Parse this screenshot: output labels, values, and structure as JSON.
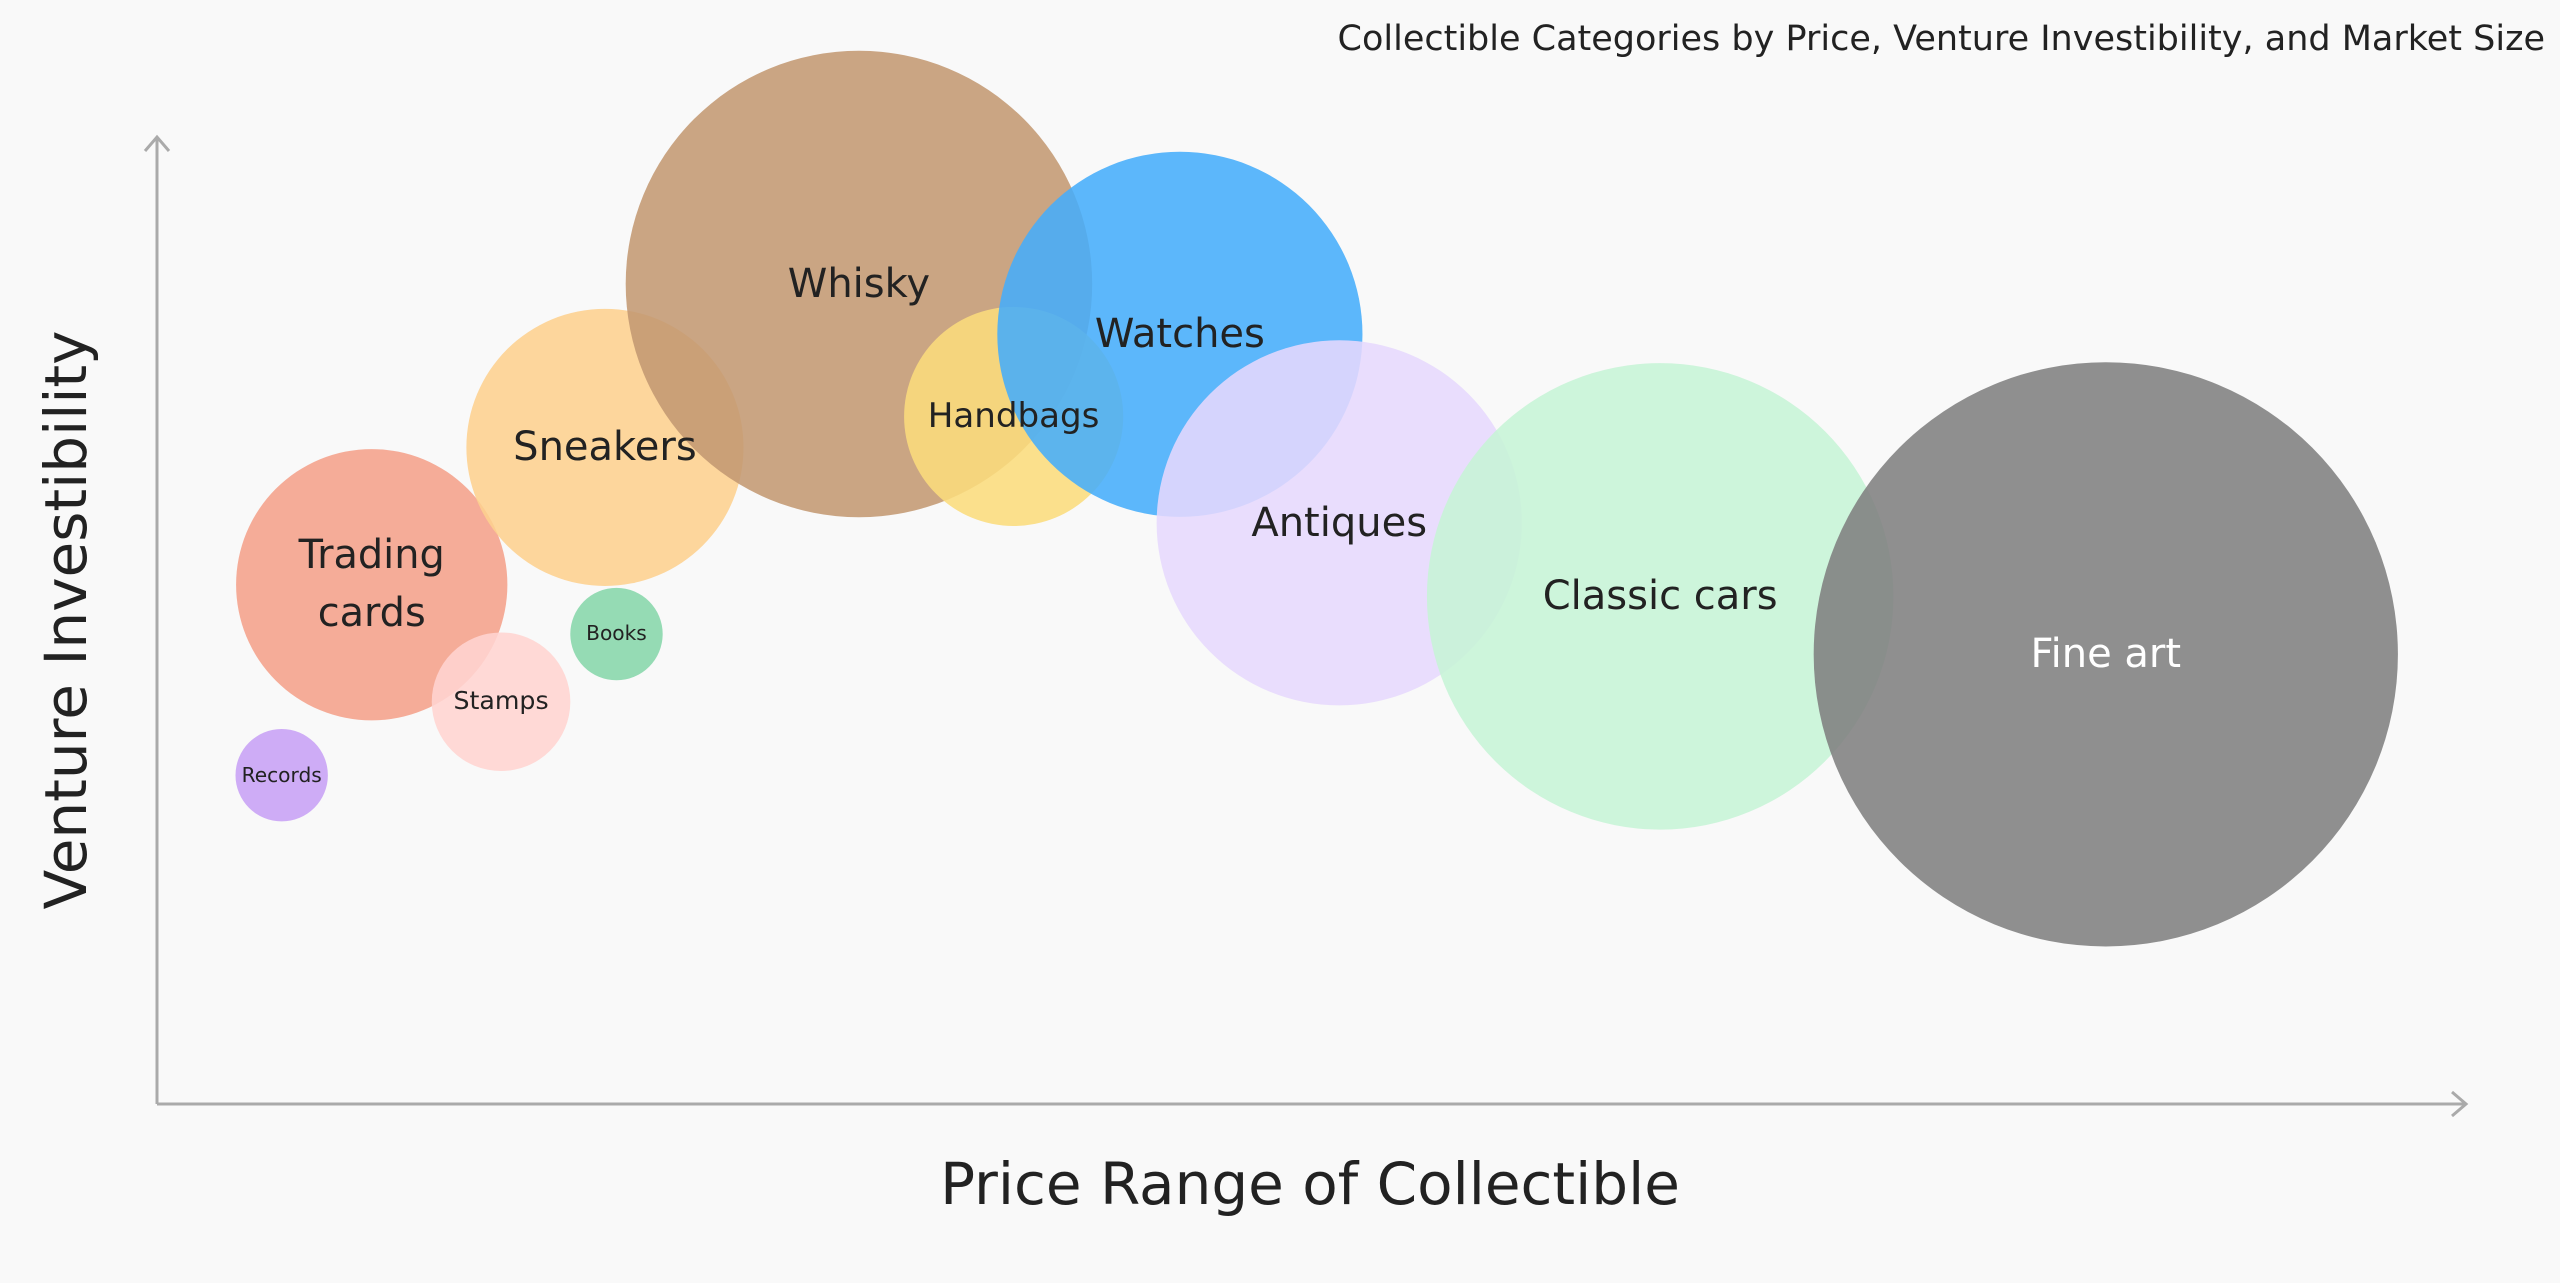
{
  "chart_data": {
    "type": "bubble",
    "title": "Collectible Categories by Price, Venture Investibility, and Market Size",
    "x_label": "Price Range of Collectible",
    "y_label": "Venture Investibility",
    "xlim": [
      0,
      100
    ],
    "ylim": [
      0,
      100
    ],
    "points": [
      {
        "name": "Trading cards",
        "color": "#f4a08a",
        "x": 9.3,
        "y": 53.7,
        "size": 69
      },
      {
        "name": "Stamps",
        "color": "#ffd4d0",
        "x": 14.9,
        "y": 41.6,
        "size": 18
      },
      {
        "name": "Books",
        "color": "#86d6aa",
        "x": 19.9,
        "y": 48.6,
        "size": 8
      },
      {
        "name": "Records",
        "color": "#c7a0f5",
        "x": 5.4,
        "y": 34.0,
        "size": 8
      },
      {
        "name": "Sneakers",
        "color": "#fdd08e",
        "x": 19.4,
        "y": 67.9,
        "size": 72
      },
      {
        "name": "Whisky",
        "color": "#c39872",
        "x": 30.4,
        "y": 84.8,
        "size": 204
      },
      {
        "name": "Handbags",
        "color": "#fbdc7c",
        "x": 37.1,
        "y": 71.1,
        "size": 45
      },
      {
        "name": "Watches",
        "color": "#45adfb",
        "x": 44.3,
        "y": 79.6,
        "size": 125
      },
      {
        "name": "Antiques",
        "color": "#e6d8fd",
        "x": 51.2,
        "y": 60.1,
        "size": 125
      },
      {
        "name": "Classic cars",
        "color": "#c6f4d6",
        "x": 65.1,
        "y": 52.5,
        "size": 204
      },
      {
        "name": "Fine art",
        "color": "#7f7f7f",
        "x": 84.4,
        "y": 46.5,
        "size": 320
      }
    ]
  }
}
